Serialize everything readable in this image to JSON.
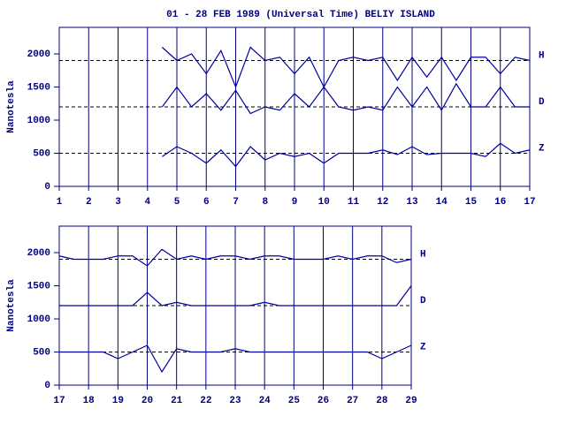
{
  "chart_data": [
    {
      "type": "line",
      "title": "01 - 28 FEB 1989 (Universal Time) BELIY ISLAND",
      "y_label": "Nanotesla",
      "x": [
        1,
        1.5,
        2,
        2.5,
        3,
        3.5,
        4,
        4.5,
        5,
        5.5,
        6,
        6.5,
        7,
        7.5,
        8,
        8.5,
        9,
        9.5,
        10,
        10.5,
        11,
        11.5,
        12,
        12.5,
        13,
        13.5,
        14,
        14.5,
        15,
        15.5,
        16,
        16.5,
        17
      ],
      "xlim": [
        1,
        17
      ],
      "xticks": [
        1,
        2,
        3,
        4,
        5,
        6,
        7,
        8,
        9,
        10,
        11,
        12,
        13,
        14,
        15,
        16,
        17
      ],
      "ylim": [
        0,
        2400
      ],
      "yticks": [
        0,
        500,
        1000,
        1500,
        2000
      ],
      "grid": true,
      "reference_lines": [
        1900,
        1200,
        500
      ],
      "series": [
        {
          "name": "H",
          "color": "#0000a0",
          "values": [
            null,
            null,
            null,
            null,
            null,
            null,
            null,
            2100,
            1900,
            2000,
            1700,
            2050,
            1500,
            2100,
            1900,
            1950,
            1700,
            1950,
            1500,
            1900,
            1950,
            1900,
            1950,
            1600,
            1950,
            1650,
            1950,
            1600,
            1950,
            1950,
            1700,
            1950,
            1900
          ]
        },
        {
          "name": "D",
          "color": "#0000a0",
          "values": [
            null,
            null,
            null,
            null,
            null,
            null,
            null,
            1200,
            1500,
            1200,
            1400,
            1150,
            1450,
            1100,
            1200,
            1150,
            1400,
            1200,
            1500,
            1200,
            1150,
            1200,
            1150,
            1500,
            1200,
            1500,
            1150,
            1550,
            1200,
            1200,
            1500,
            1200,
            1200
          ]
        },
        {
          "name": "Z",
          "color": "#0000a0",
          "values": [
            null,
            null,
            null,
            null,
            null,
            null,
            null,
            450,
            600,
            500,
            350,
            550,
            300,
            600,
            400,
            500,
            450,
            500,
            350,
            500,
            500,
            500,
            550,
            480,
            600,
            480,
            500,
            500,
            500,
            450,
            650,
            500,
            550
          ]
        }
      ]
    },
    {
      "type": "line",
      "y_label": "Nanotesla",
      "x": [
        17,
        17.5,
        18,
        18.5,
        19,
        19.5,
        20,
        20.5,
        21,
        21.5,
        22,
        22.5,
        23,
        23.5,
        24,
        24.5,
        25,
        25.5,
        26,
        26.5,
        27,
        27.5,
        28,
        28.5,
        29
      ],
      "xlim": [
        17,
        29
      ],
      "xticks": [
        17,
        18,
        19,
        20,
        21,
        22,
        23,
        24,
        25,
        26,
        27,
        28,
        29
      ],
      "ylim": [
        0,
        2400
      ],
      "yticks": [
        0,
        500,
        1000,
        1500,
        2000
      ],
      "grid": true,
      "reference_lines": [
        1900,
        1200,
        500
      ],
      "series": [
        {
          "name": "H",
          "color": "#0000a0",
          "values": [
            1950,
            1900,
            1900,
            1900,
            1950,
            1950,
            1800,
            2050,
            1900,
            1950,
            1900,
            1950,
            1950,
            1900,
            1950,
            1950,
            1900,
            1900,
            1900,
            1950,
            1900,
            1950,
            1950,
            1850,
            1900
          ]
        },
        {
          "name": "D",
          "color": "#0000a0",
          "values": [
            1200,
            1200,
            1200,
            1200,
            1200,
            1200,
            1400,
            1200,
            1250,
            1200,
            1200,
            1200,
            1200,
            1200,
            1250,
            1200,
            1200,
            1200,
            1200,
            1200,
            1200,
            1200,
            1200,
            1200,
            1500
          ]
        },
        {
          "name": "Z",
          "color": "#0000a0",
          "values": [
            500,
            500,
            500,
            500,
            400,
            500,
            600,
            200,
            550,
            500,
            500,
            500,
            550,
            500,
            500,
            500,
            500,
            500,
            500,
            500,
            500,
            500,
            400,
            500,
            600
          ]
        }
      ]
    }
  ]
}
